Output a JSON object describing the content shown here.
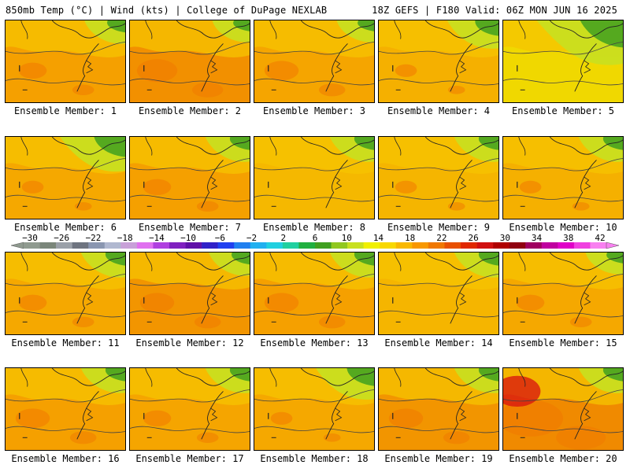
{
  "header": {
    "left": "850mb Temp (°C) | Wind (kts) | College of DuPage NEXLAB",
    "right": "18Z GEFS | F180 Valid: 06Z MON JUN 16 2025"
  },
  "colorbar": {
    "tick_labels": [
      "−30",
      "−26",
      "−22",
      "−18",
      "−14",
      "−10",
      "−6",
      "−2",
      "2",
      "6",
      "10",
      "14",
      "18",
      "22",
      "26",
      "30",
      "34",
      "38",
      "42"
    ],
    "colors": [
      "#8f9a8f",
      "#7a867a",
      "#9aa0a8",
      "#6e7480",
      "#8a96b0",
      "#b0b8d0",
      "#c8a0d8",
      "#e070f0",
      "#b040e0",
      "#8020c0",
      "#6010a8",
      "#3020c8",
      "#2040f0",
      "#2080f0",
      "#20b0f0",
      "#20d0e0",
      "#20d0a0",
      "#20b040",
      "#40a020",
      "#90c820",
      "#c8e020",
      "#f0f000",
      "#f8d800",
      "#f8b800",
      "#f89800",
      "#f07800",
      "#e85000",
      "#e02800",
      "#d01010",
      "#b00000",
      "#900010",
      "#a00060",
      "#c000a0",
      "#e000c8",
      "#f040e0",
      "#f880f0"
    ]
  },
  "panels": [
    {
      "caption": "Ensemble Member: 1",
      "tint": "#f5a000",
      "hot": 0.2,
      "green": 0.25
    },
    {
      "caption": "Ensemble Member: 2",
      "tint": "#f29000",
      "hot": 0.4,
      "green": 0.2
    },
    {
      "caption": "Ensemble Member: 3",
      "tint": "#f5a500",
      "hot": 0.3,
      "green": 0.2
    },
    {
      "caption": "Ensemble Member: 4",
      "tint": "#f5b000",
      "hot": 0.1,
      "green": 0.4
    },
    {
      "caption": "Ensemble Member: 5",
      "tint": "#f0d800",
      "hot": 0.0,
      "green": 0.9
    },
    {
      "caption": "Ensemble Member: 6",
      "tint": "#f5a800",
      "hot": 0.1,
      "green": 0.6
    },
    {
      "caption": "Ensemble Member: 7",
      "tint": "#f5a000",
      "hot": 0.2,
      "green": 0.3
    },
    {
      "caption": "Ensemble Member: 8",
      "tint": "#f5b800",
      "hot": 0.0,
      "green": 0.3
    },
    {
      "caption": "Ensemble Member: 9",
      "tint": "#f5b500",
      "hot": 0.1,
      "green": 0.3
    },
    {
      "caption": "Ensemble Member: 10",
      "tint": "#f5b000",
      "hot": 0.1,
      "green": 0.3
    },
    {
      "caption": "Ensemble Member: 11",
      "tint": "#f5a800",
      "hot": 0.2,
      "green": 0.3
    },
    {
      "caption": "Ensemble Member: 12",
      "tint": "#f29500",
      "hot": 0.3,
      "green": 0.25
    },
    {
      "caption": "Ensemble Member: 13",
      "tint": "#f5a000",
      "hot": 0.3,
      "green": 0.3
    },
    {
      "caption": "Ensemble Member: 14",
      "tint": "#f5b500",
      "hot": 0.0,
      "green": 0.3
    },
    {
      "caption": "Ensemble Member: 15",
      "tint": "#f5a800",
      "hot": 0.2,
      "green": 0.2
    },
    {
      "caption": "Ensemble Member: 16",
      "tint": "#f5a000",
      "hot": 0.3,
      "green": 0.3
    },
    {
      "caption": "Ensemble Member: 17",
      "tint": "#f5a500",
      "hot": 0.2,
      "green": 0.3
    },
    {
      "caption": "Ensemble Member: 18",
      "tint": "#f5a800",
      "hot": 0.1,
      "green": 0.5
    },
    {
      "caption": "Ensemble Member: 19",
      "tint": "#f29500",
      "hot": 0.3,
      "green": 0.3
    },
    {
      "caption": "Ensemble Member: 20",
      "tint": "#f08a00",
      "hot": 0.8,
      "green": 0.3
    }
  ]
}
